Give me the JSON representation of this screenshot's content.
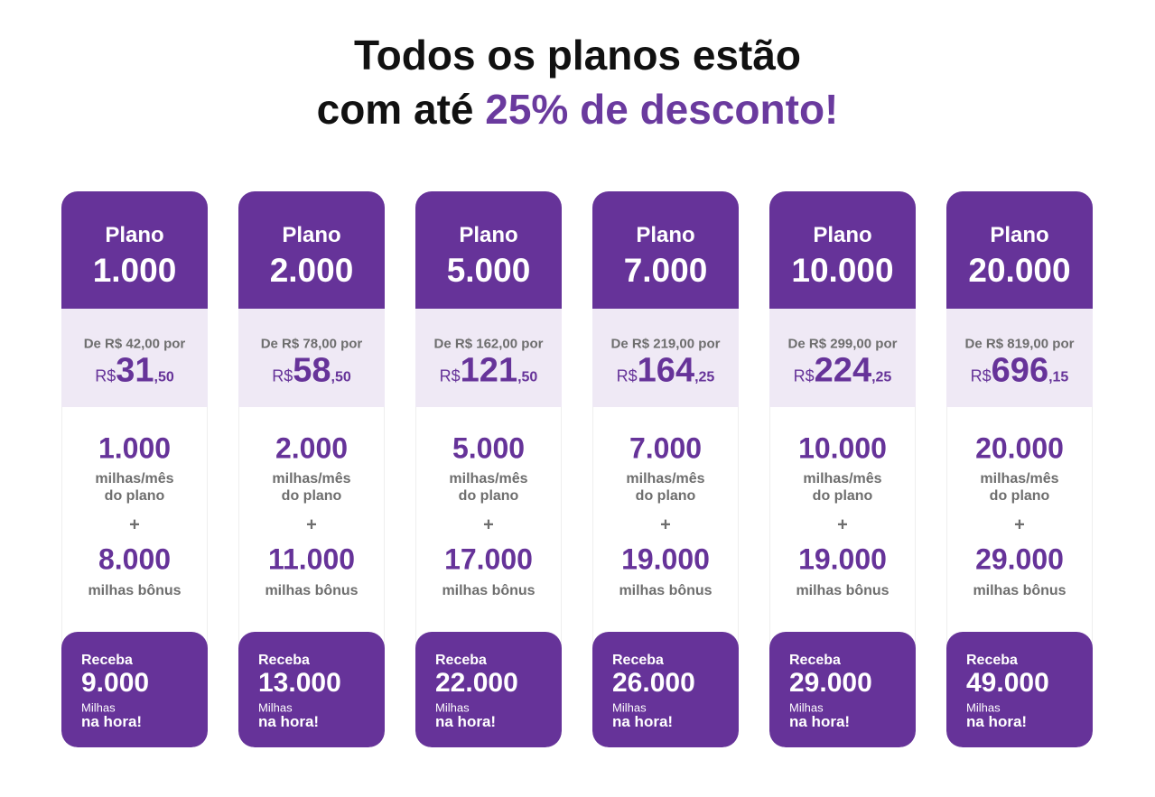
{
  "header": {
    "line1": "Todos os planos estão",
    "line2_prefix": "com até",
    "line2_highlight": "25% de desconto!"
  },
  "labels": {
    "plan": "Plano",
    "currency": "R$",
    "miles_month": "milhas/mês",
    "of_plan": "do plano",
    "plus": "+",
    "bonus_miles": "milhas bônus",
    "receive": "Receba",
    "miles": "Milhas",
    "now": "na hora!"
  },
  "plans": [
    {
      "name": "1.000",
      "old_price": "De R$ 42,00 por",
      "price_int": "31",
      "price_cents": ",50",
      "monthly": "1.000",
      "bonus": "8.000",
      "total": "9.000"
    },
    {
      "name": "2.000",
      "old_price": "De R$ 78,00 por",
      "price_int": "58",
      "price_cents": ",50",
      "monthly": "2.000",
      "bonus": "11.000",
      "total": "13.000"
    },
    {
      "name": "5.000",
      "old_price": "De R$ 162,00 por",
      "price_int": "121",
      "price_cents": ",50",
      "monthly": "5.000",
      "bonus": "17.000",
      "total": "22.000"
    },
    {
      "name": "7.000",
      "old_price": "De R$ 219,00 por",
      "price_int": "164",
      "price_cents": ",25",
      "monthly": "7.000",
      "bonus": "19.000",
      "total": "26.000"
    },
    {
      "name": "10.000",
      "old_price": "De R$ 299,00 por",
      "price_int": "224",
      "price_cents": ",25",
      "monthly": "10.000",
      "bonus": "19.000",
      "total": "29.000"
    },
    {
      "name": "20.000",
      "old_price": "De R$ 819,00 por",
      "price_int": "696",
      "price_cents": ",15",
      "monthly": "20.000",
      "bonus": "29.000",
      "total": "49.000"
    }
  ]
}
